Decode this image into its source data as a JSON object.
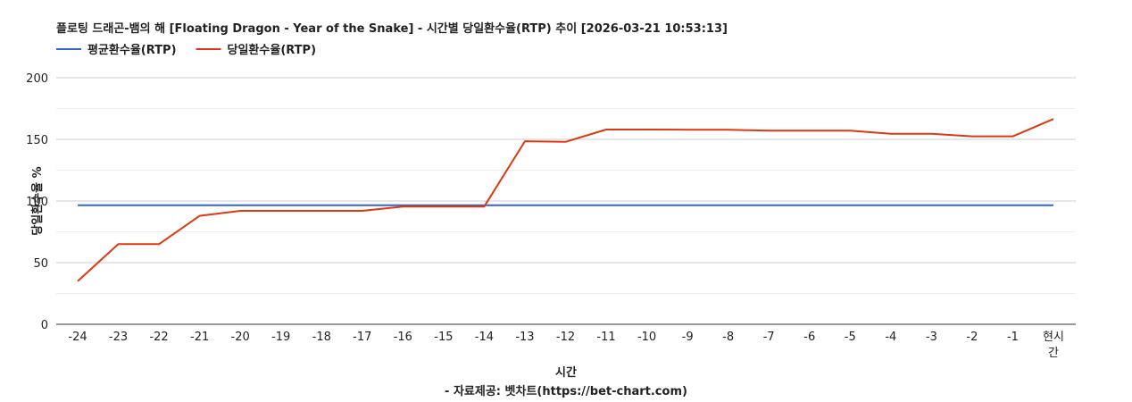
{
  "chart_data": {
    "type": "line",
    "title": "플로팅 드래곤-뱀의 해 [Floating Dragon - Year of the Snake] - 시간별 당일환수율(RTP) 추이 [2026-03-21 10:53:13]",
    "xlabel": "시간",
    "ylabel": "당일환수율 %",
    "source": "- 자료제공: 벳차트(https://bet-chart.com)",
    "ylim": [
      0,
      200
    ],
    "yticks": [
      0,
      50,
      100,
      150,
      200
    ],
    "grid": true,
    "legend_position": "top-left",
    "x": [
      "-24",
      "-23",
      "-22",
      "-21",
      "-20",
      "-19",
      "-18",
      "-17",
      "-16",
      "-15",
      "-14",
      "-13",
      "-12",
      "-11",
      "-10",
      "-9",
      "-8",
      "-7",
      "-6",
      "-5",
      "-4",
      "-3",
      "-2",
      "-1",
      "현시간"
    ],
    "series": [
      {
        "name": "평균환수율(RTP)",
        "color": "#3366cc",
        "values": [
          96.5,
          96.5,
          96.5,
          96.5,
          96.5,
          96.5,
          96.5,
          96.5,
          96.5,
          96.5,
          96.5,
          96.5,
          96.5,
          96.5,
          96.5,
          96.5,
          96.5,
          96.5,
          96.5,
          96.5,
          96.5,
          96.5,
          96.5,
          96.5,
          96.5
        ]
      },
      {
        "name": "당일환수율(RTP)",
        "color": "#dc3912",
        "values": [
          35,
          65,
          65,
          88,
          92,
          92,
          92,
          92,
          95.5,
          95.5,
          95.5,
          148.5,
          148,
          158,
          158,
          157.8,
          157.8,
          157,
          157,
          157,
          154.5,
          154.5,
          152.5,
          152.5,
          166.5
        ]
      }
    ]
  }
}
